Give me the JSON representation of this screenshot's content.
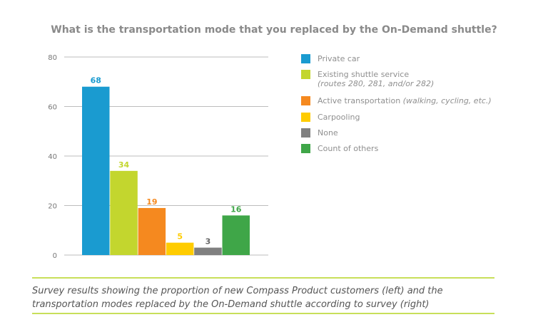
{
  "chart_data": {
    "type": "bar",
    "title": "What is the transportation mode that you replaced by the On-Demand shuttle?",
    "categories": [
      "Private car",
      "Existing shuttle service",
      "Active transportation",
      "Carpooling",
      "None",
      "Count of others"
    ],
    "values": [
      68,
      34,
      19,
      5,
      3,
      16
    ],
    "colors": [
      "#1a9bd0",
      "#c3d62e",
      "#f5891f",
      "#ffcc00",
      "#808080",
      "#3fa648"
    ],
    "ylim": [
      0,
      80
    ],
    "yticks": [
      0,
      20,
      40,
      60,
      80
    ],
    "grid": true,
    "legend_position": "right",
    "legend": [
      {
        "label": "Private car",
        "note": ""
      },
      {
        "label": "Existing shuttle service",
        "note": "(routes 280, 281, and/or 282)"
      },
      {
        "label": "Active transportation",
        "note": "(walking, cycling, etc.)"
      },
      {
        "label": "Carpooling",
        "note": ""
      },
      {
        "label": "None",
        "note": ""
      },
      {
        "label": "Count of others",
        "note": ""
      }
    ]
  },
  "caption": "Survey results showing the proportion of new Compass Product customers (left) and the transportation modes replaced by the On-Demand shuttle according to survey (right)"
}
